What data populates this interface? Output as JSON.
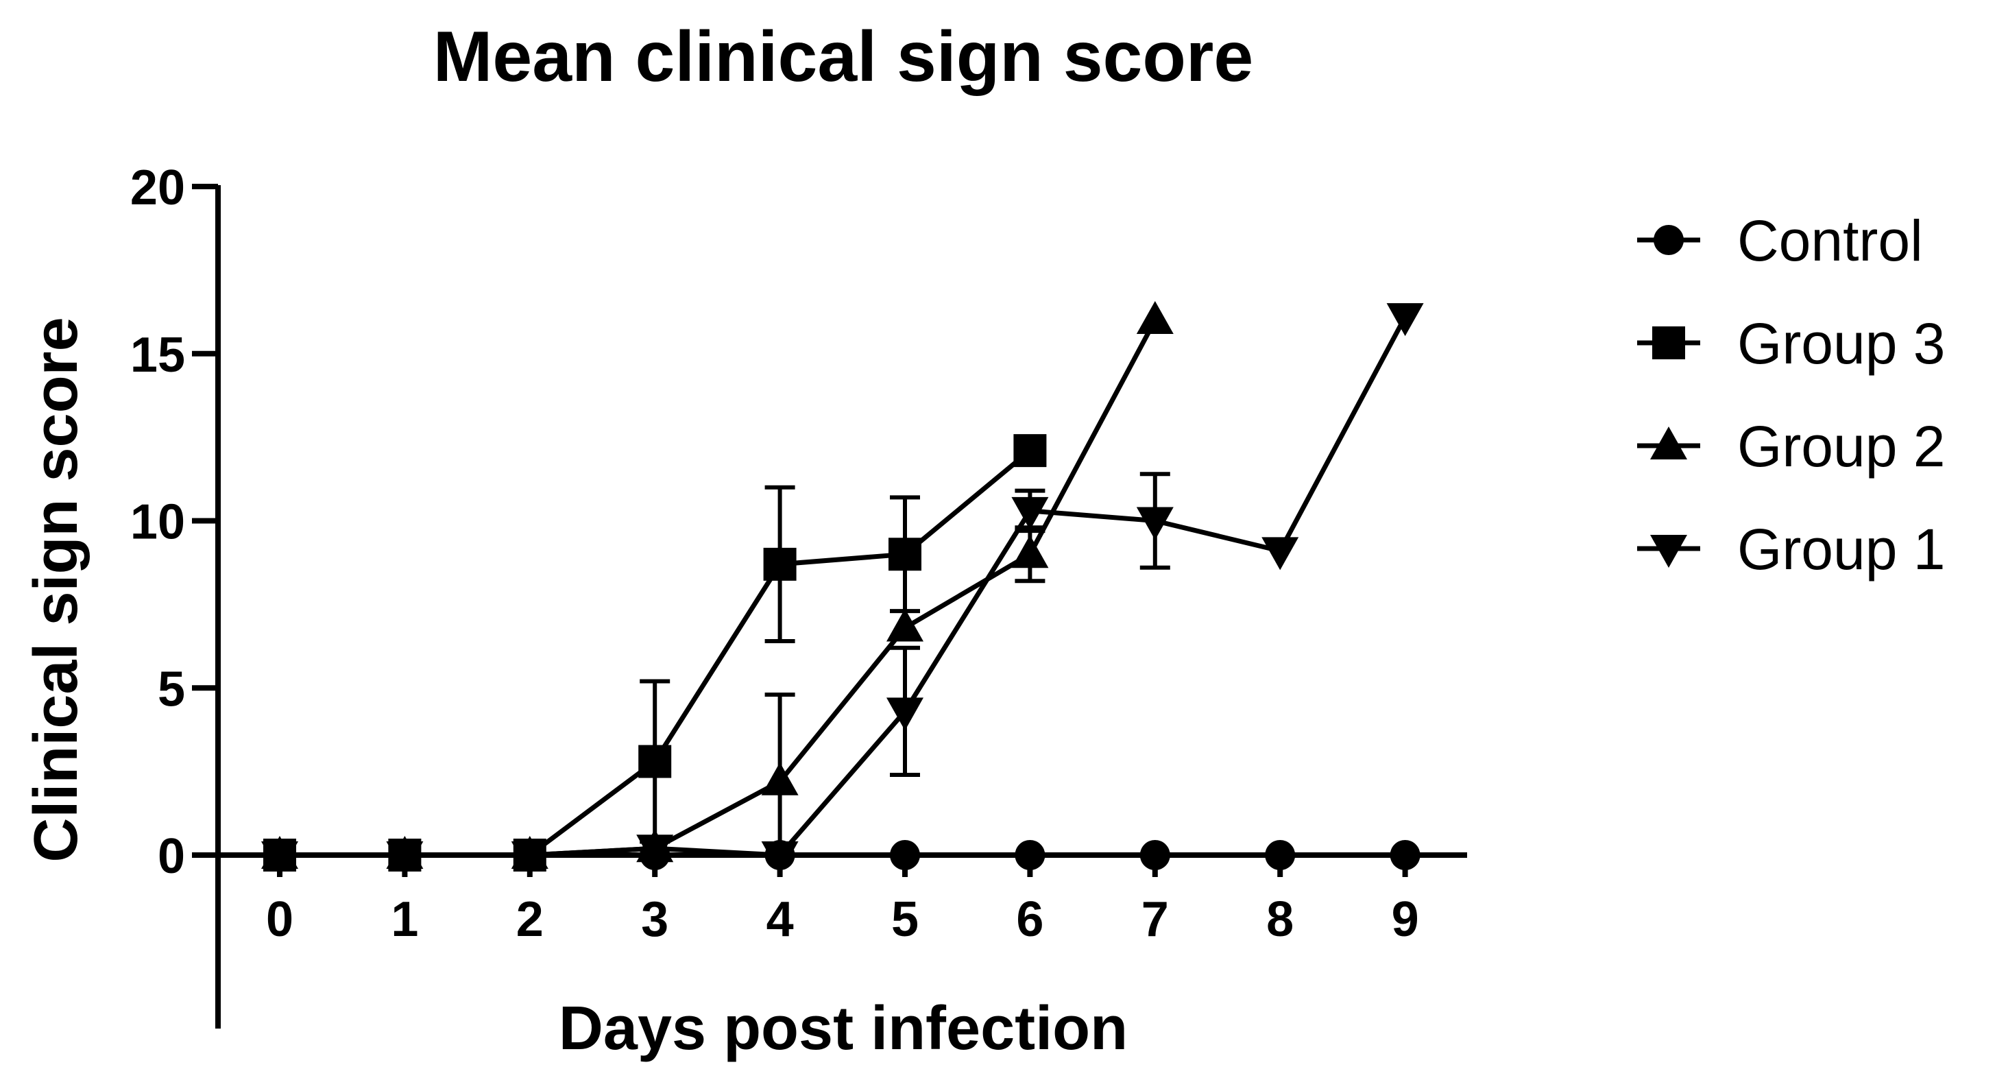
{
  "chart_data": {
    "type": "line",
    "title": "Mean clinical sign score",
    "xlabel": "Days post infection",
    "ylabel": "Clinical sign score",
    "xlim": [
      0,
      9
    ],
    "ylim": [
      0,
      20
    ],
    "x_ticks": [
      0,
      1,
      2,
      3,
      4,
      5,
      6,
      7,
      8,
      9
    ],
    "y_ticks": [
      0,
      5,
      10,
      15,
      20
    ],
    "grid": false,
    "legend_position": "right",
    "series": [
      {
        "name": "Control",
        "marker": "circle",
        "color": "#000000",
        "x": [
          0,
          1,
          2,
          3,
          4,
          5,
          6,
          7,
          8,
          9
        ],
        "y": [
          0,
          0,
          0,
          0,
          0,
          0,
          0,
          0,
          0,
          0
        ],
        "error": [
          0,
          0,
          0,
          0,
          0,
          0,
          0,
          0,
          0,
          0
        ]
      },
      {
        "name": "Group 3",
        "marker": "square",
        "color": "#000000",
        "x": [
          0,
          1,
          2,
          3,
          4,
          5,
          6
        ],
        "y": [
          0,
          0,
          0,
          2.8,
          8.7,
          9.0,
          12.1
        ],
        "error": [
          0,
          0,
          0,
          2.4,
          2.3,
          1.7,
          0
        ]
      },
      {
        "name": "Group 2",
        "marker": "triangle-up",
        "color": "#000000",
        "x": [
          0,
          1,
          2,
          3,
          4,
          5,
          6,
          7
        ],
        "y": [
          0,
          0,
          0,
          0.2,
          2.2,
          6.8,
          9.0,
          16.0
        ],
        "error": [
          0,
          0,
          0,
          0,
          2.6,
          0,
          0.8,
          0
        ]
      },
      {
        "name": "Group 1",
        "marker": "triangle-down",
        "color": "#000000",
        "x": [
          0,
          1,
          2,
          3,
          4,
          5,
          6,
          7,
          8,
          9
        ],
        "y": [
          0,
          0,
          0,
          0.2,
          0,
          4.3,
          10.3,
          10.0,
          9.1,
          16.1
        ],
        "error": [
          0,
          0,
          0,
          0,
          0,
          1.9,
          0.6,
          1.4,
          0,
          0
        ]
      }
    ]
  }
}
